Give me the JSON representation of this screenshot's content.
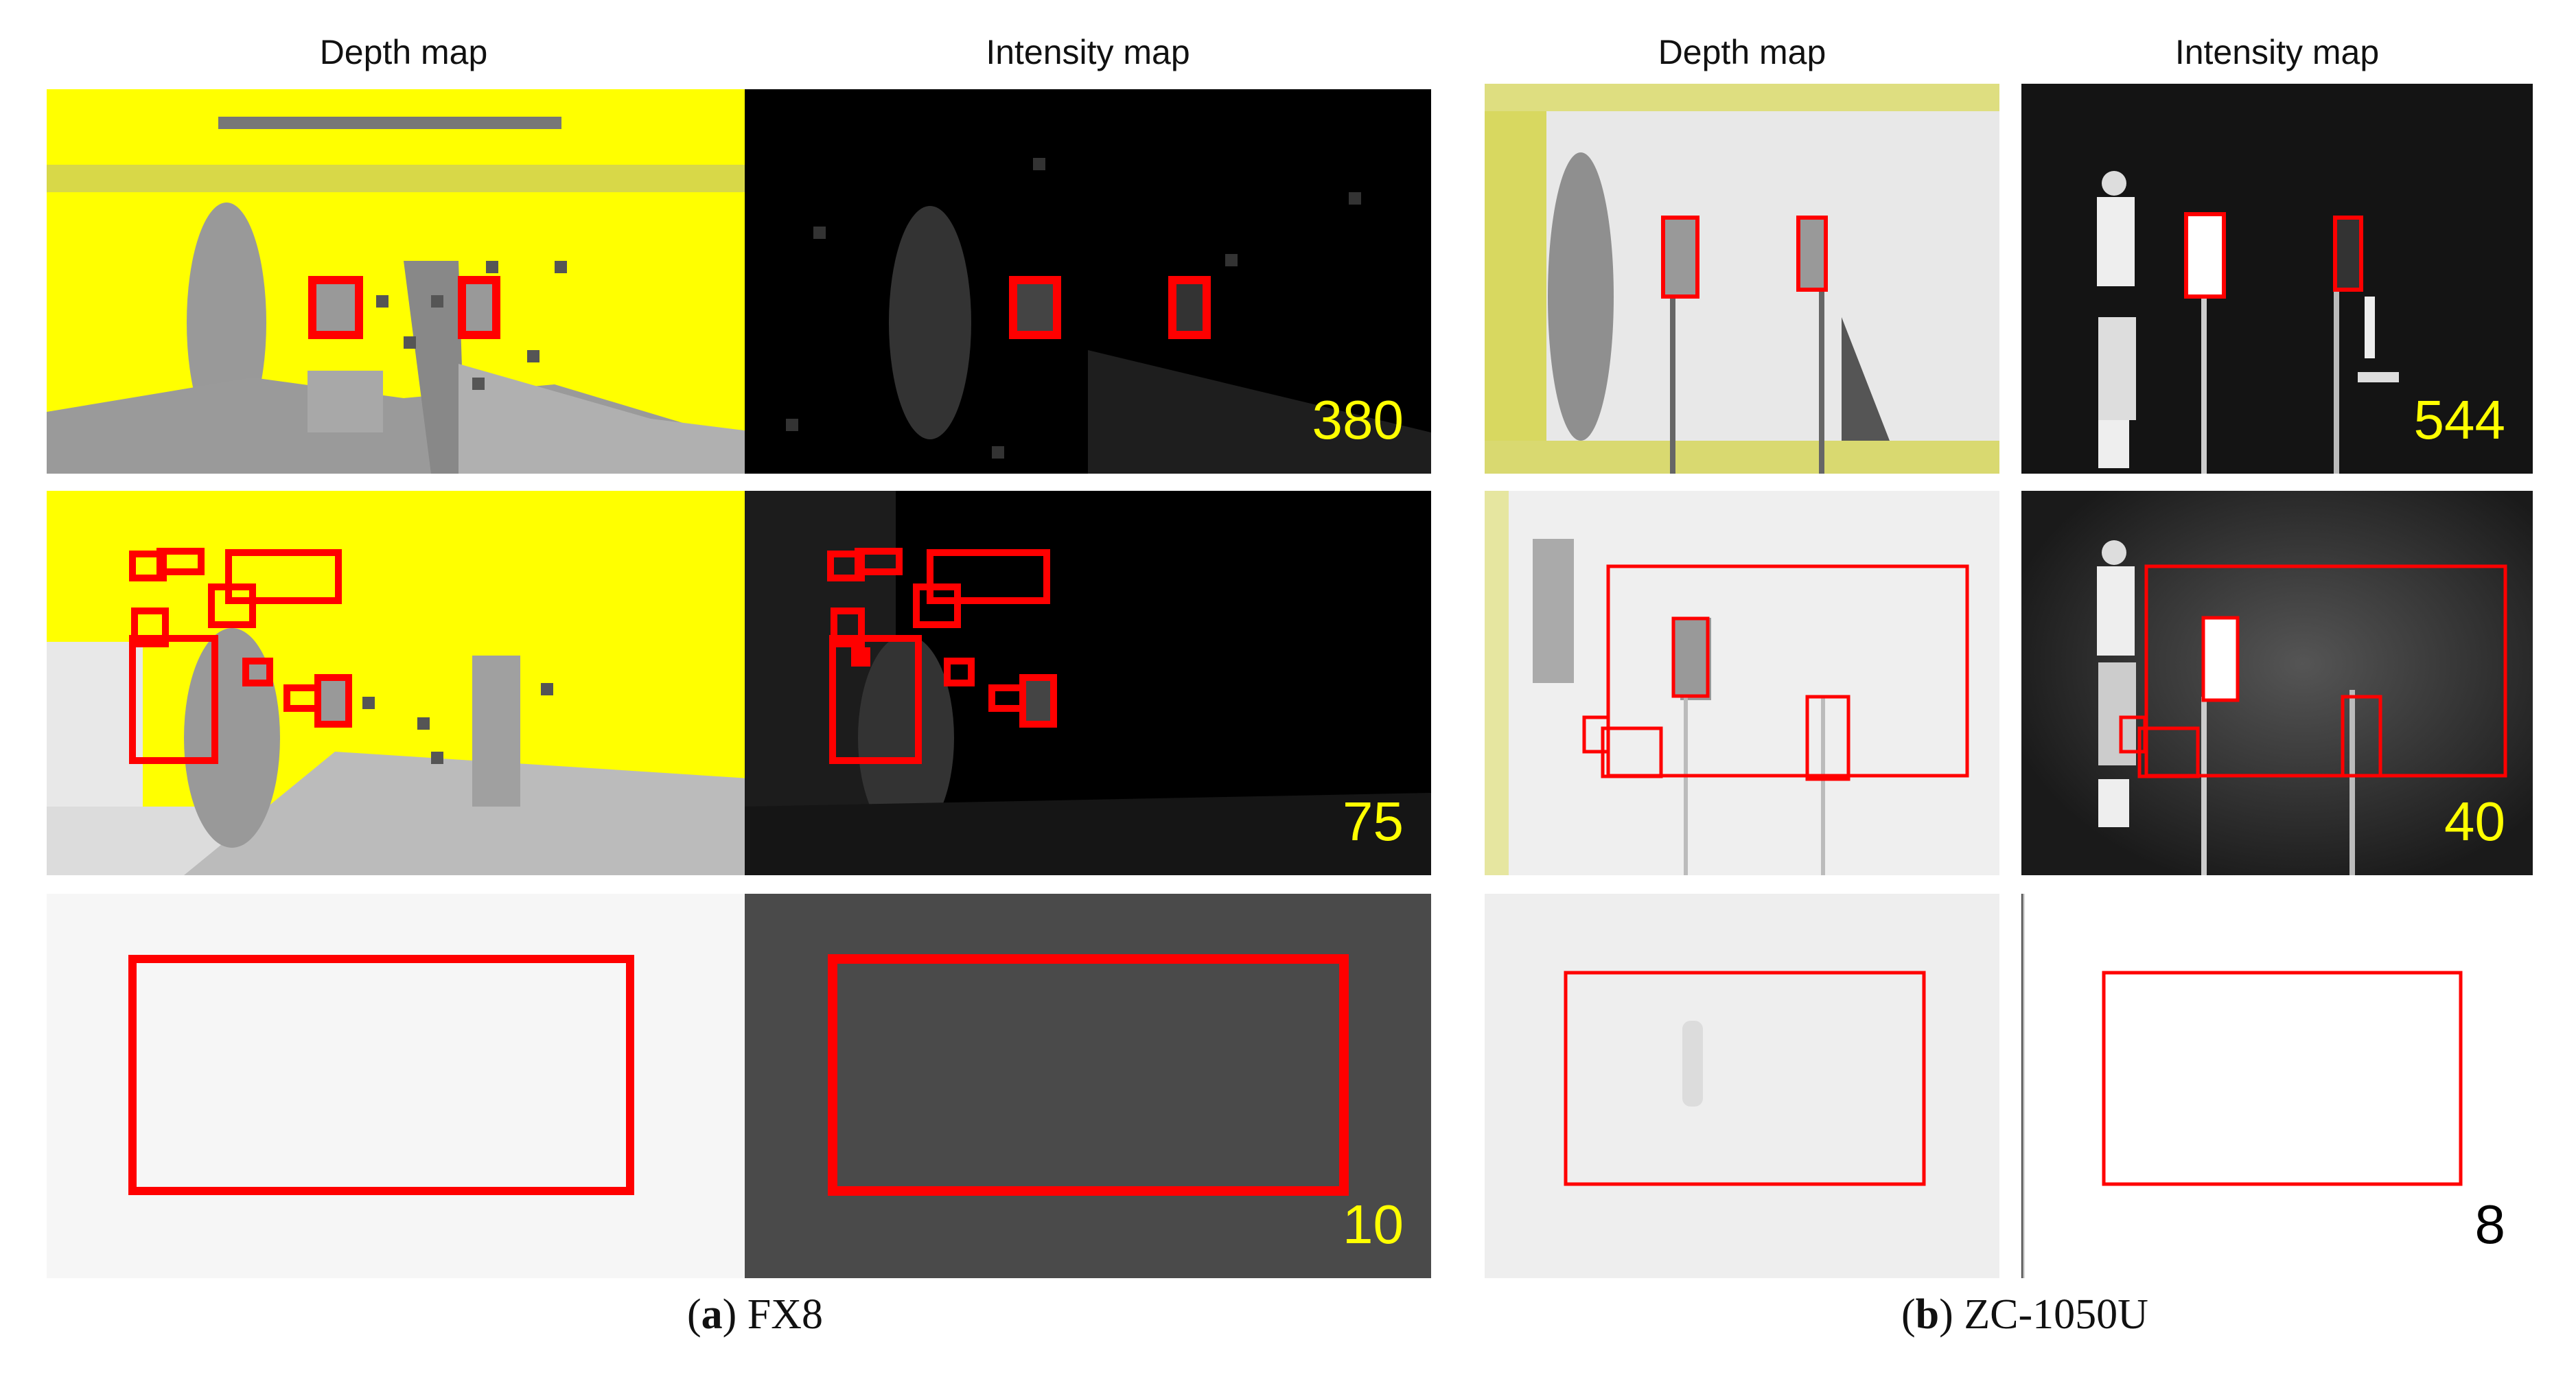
{
  "figure": {
    "groups": [
      {
        "letter": "a",
        "camera": "FX8",
        "headers": [
          "Depth map",
          "Intensity map"
        ],
        "counts": [
          "380",
          "75",
          "10"
        ]
      },
      {
        "letter": "b",
        "camera": "ZC-1050U",
        "headers": [
          "Depth map",
          "Intensity map"
        ],
        "counts": [
          "544",
          "40",
          "8"
        ]
      }
    ]
  },
  "colors": {
    "box": "#ff0000",
    "count_yellow": "#ffff00",
    "count_black": "#000000",
    "depth_fill": "#ffff00",
    "intensity_fill": "#000000"
  }
}
